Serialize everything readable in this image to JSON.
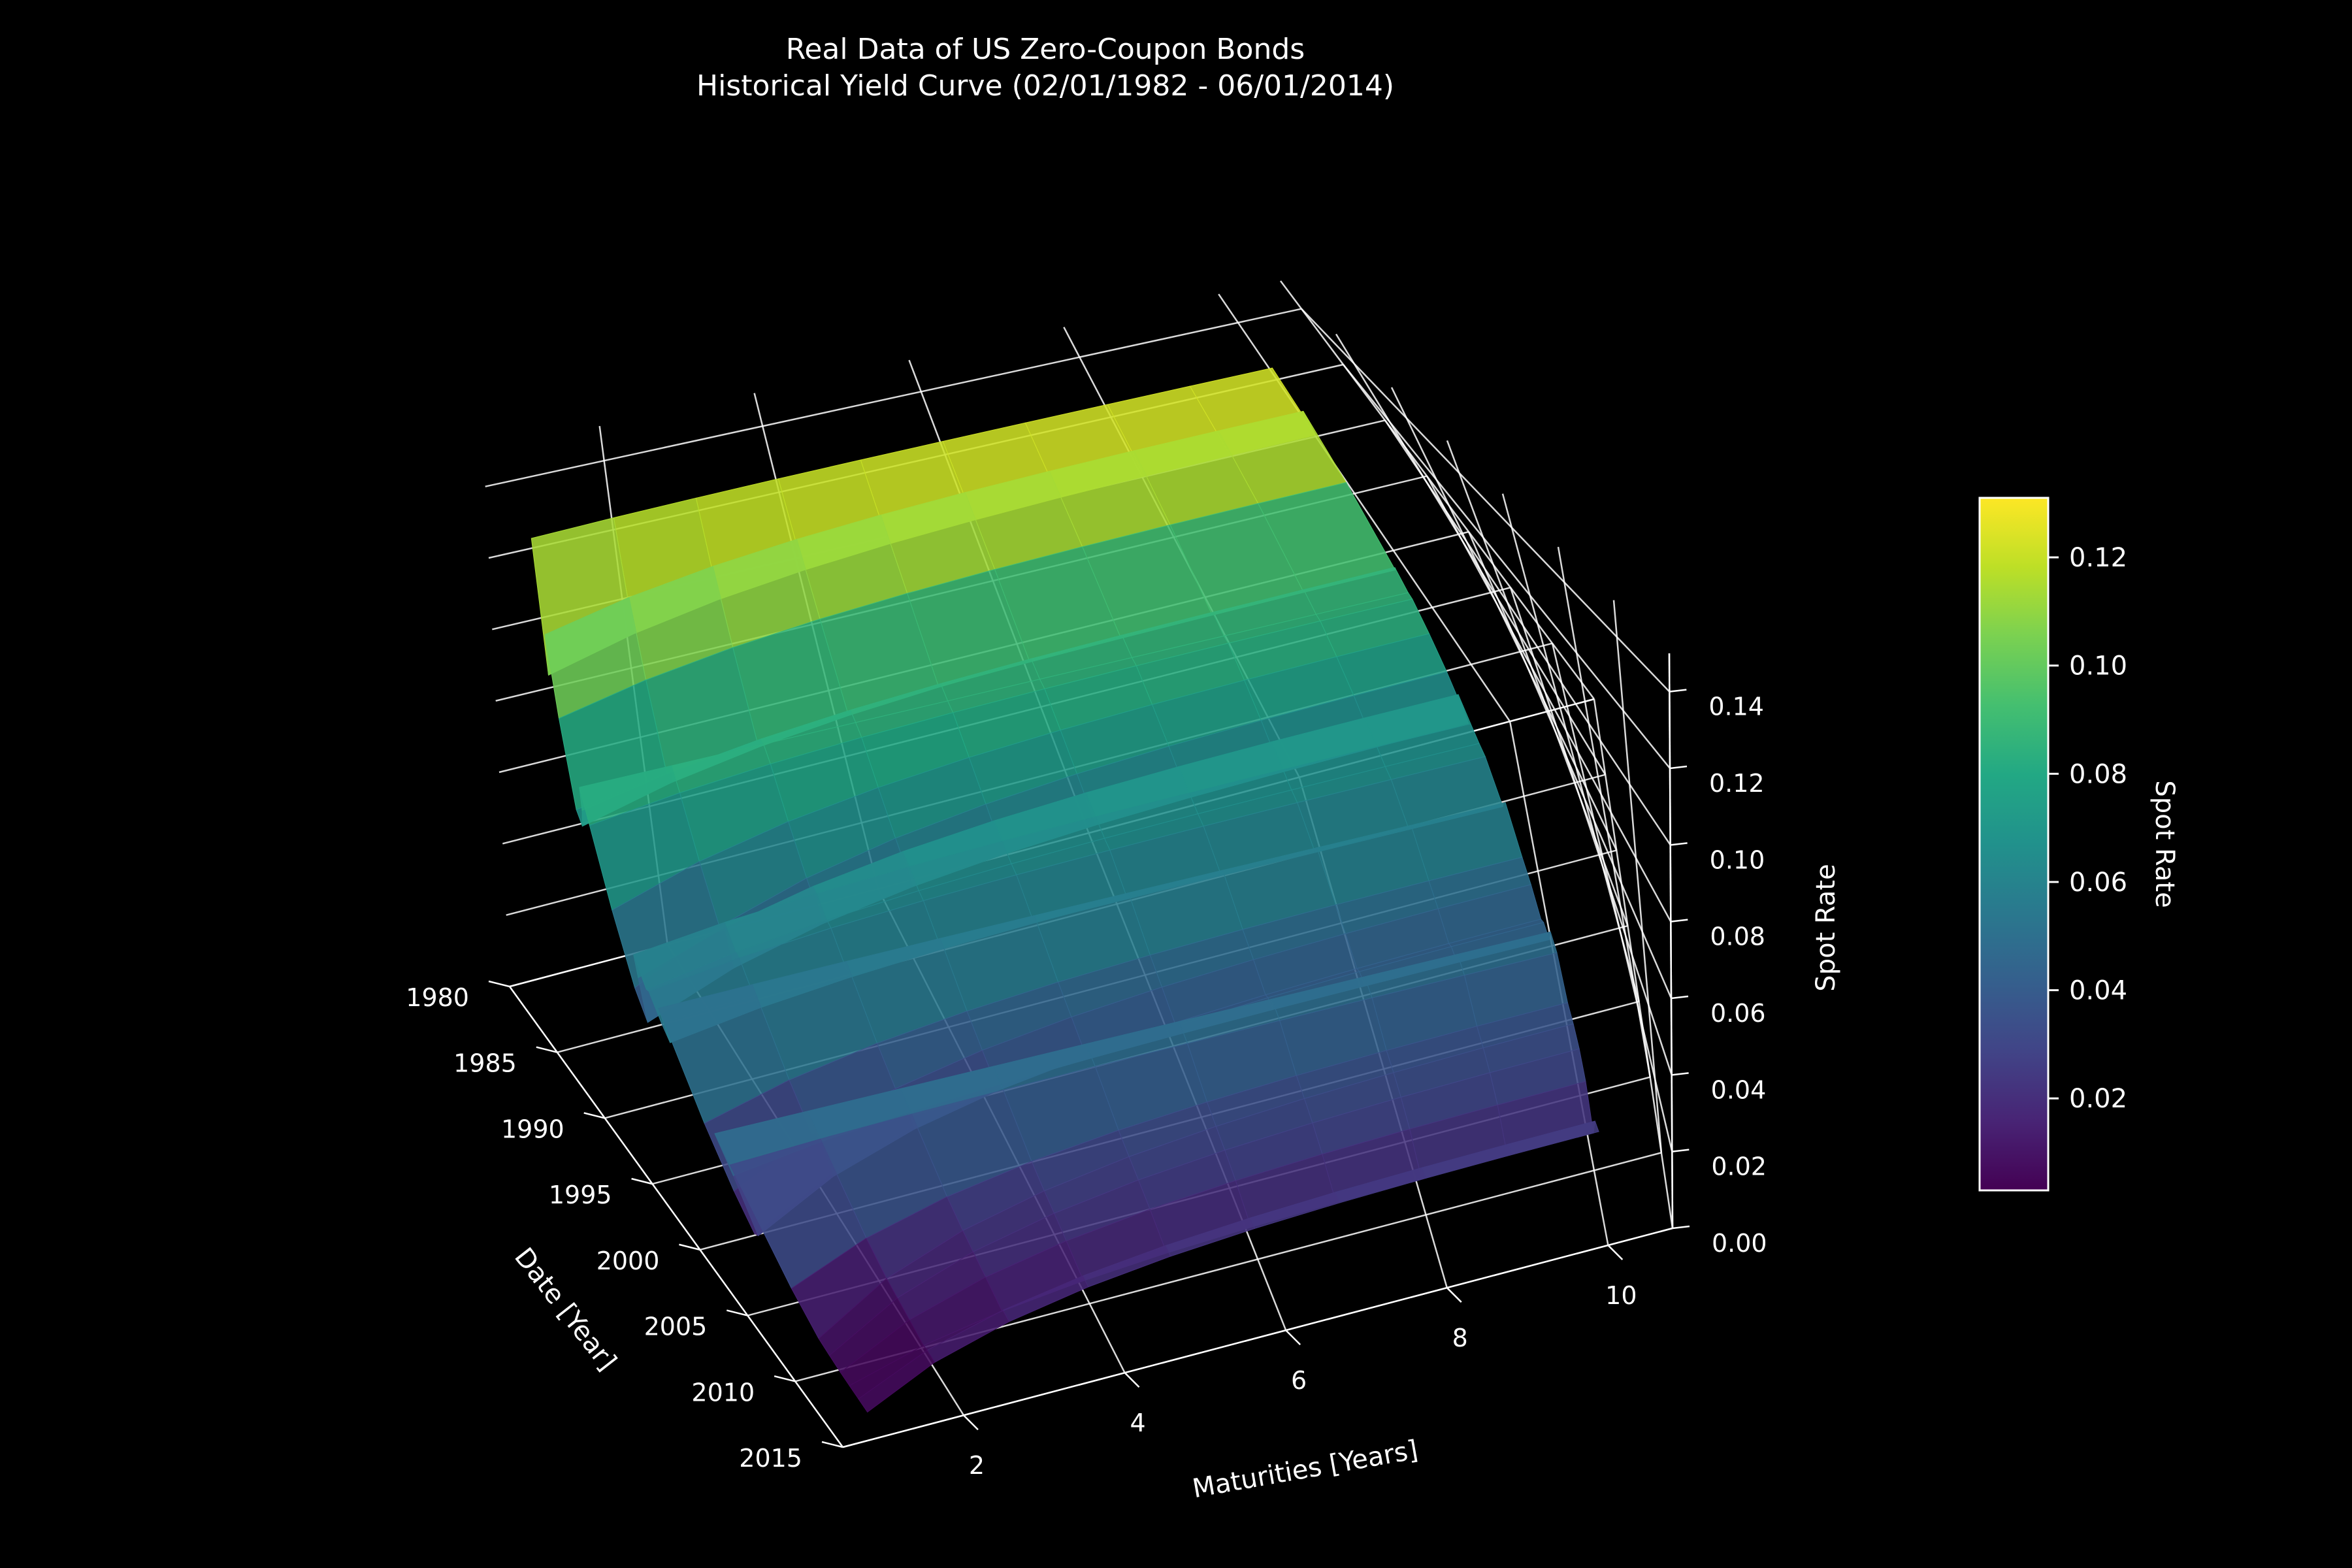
{
  "chart_data": {
    "type": "surface",
    "title": "Real Data of US Zero-Coupon Bonds",
    "subtitle": "Historical Yield Curve (02/01/1982 - 06/01/2014)",
    "xlabel": "Maturities [Years]",
    "ylabel": "Date [Year]",
    "zlabel": "Spot Rate",
    "colorbar_label": "Spot Rate",
    "colormap": "viridis",
    "x_ticks": [
      "2",
      "4",
      "6",
      "8",
      "10"
    ],
    "y_ticks": [
      "1980",
      "1985",
      "1990",
      "1995",
      "2000",
      "2005",
      "2010",
      "2015"
    ],
    "z_ticks": [
      "0.00",
      "0.02",
      "0.04",
      "0.06",
      "0.08",
      "0.10",
      "0.12",
      "0.14"
    ],
    "colorbar_ticks": [
      "0.02",
      "0.04",
      "0.06",
      "0.08",
      "0.10",
      "0.12"
    ],
    "xlim": [
      0.5,
      10.8
    ],
    "ylim": [
      1980,
      2015
    ],
    "zlim": [
      0,
      0.15
    ],
    "colorbar_range": [
      0.003,
      0.131
    ],
    "maturities": [
      1,
      2,
      3,
      4,
      5,
      6,
      7,
      8,
      9,
      10
    ],
    "dates": [
      1982,
      1983,
      1984,
      1985,
      1986,
      1987,
      1988,
      1989,
      1990,
      1991,
      1992,
      1993,
      1994,
      1995,
      1996,
      1997,
      1998,
      1999,
      2000,
      2001,
      2002,
      2003,
      2004,
      2005,
      2006,
      2007,
      2008,
      2009,
      2010,
      2011,
      2012,
      2013,
      2014
    ],
    "short_rate_by_year": [
      0.13,
      0.095,
      0.11,
      0.09,
      0.068,
      0.067,
      0.075,
      0.085,
      0.078,
      0.058,
      0.04,
      0.034,
      0.05,
      0.06,
      0.054,
      0.057,
      0.052,
      0.05,
      0.063,
      0.035,
      0.02,
      0.012,
      0.015,
      0.035,
      0.05,
      0.045,
      0.015,
      0.005,
      0.004,
      0.003,
      0.003,
      0.003,
      0.003
    ],
    "long_rate_by_year": [
      0.132,
      0.113,
      0.125,
      0.105,
      0.08,
      0.085,
      0.089,
      0.085,
      0.087,
      0.08,
      0.072,
      0.06,
      0.073,
      0.068,
      0.066,
      0.066,
      0.055,
      0.06,
      0.064,
      0.052,
      0.048,
      0.042,
      0.045,
      0.044,
      0.05,
      0.048,
      0.038,
      0.036,
      0.033,
      0.028,
      0.018,
      0.025,
      0.026
    ],
    "grid": true,
    "colorbar_position": "right"
  }
}
